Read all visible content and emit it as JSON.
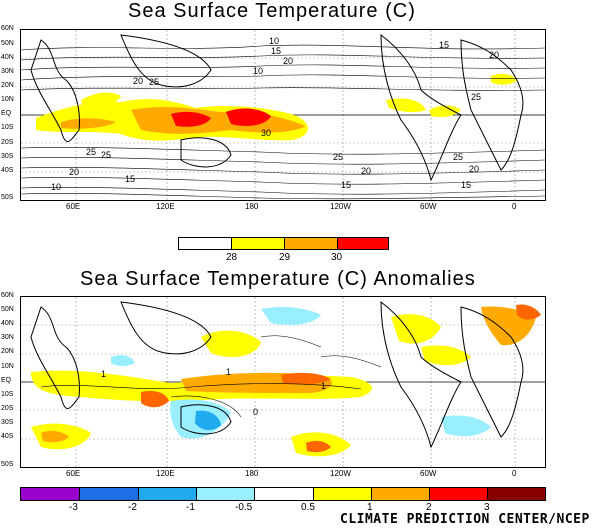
{
  "top_map": {
    "title": "Sea Surface Temperature (C)",
    "lat_labels": [
      "60N",
      "50N",
      "40N",
      "30N",
      "20N",
      "10N",
      "EQ",
      "10S",
      "20S",
      "30S",
      "40S",
      "50S"
    ],
    "lon_labels": [
      "60E",
      "120E",
      "180",
      "120W",
      "60W",
      "0"
    ],
    "contour_labels": [
      "10",
      "15",
      "20",
      "25",
      "25",
      "20",
      "15",
      "10",
      "20",
      "25",
      "30",
      "25",
      "20",
      "15",
      "10",
      "25",
      "20",
      "15",
      "25",
      "20",
      "15"
    ],
    "colorbar": {
      "ticks": [
        "28",
        "29",
        "30"
      ],
      "colors": [
        "#ffffff",
        "#ffff00",
        "#ffaa00",
        "#ff6600",
        "#ff0000"
      ]
    }
  },
  "bottom_map": {
    "title": "Sea Surface Temperature (C) Anomalies",
    "lat_labels": [
      "60N",
      "50N",
      "40N",
      "30N",
      "20N",
      "10N",
      "EQ",
      "10S",
      "20S",
      "30S",
      "40S",
      "50S"
    ],
    "lon_labels": [
      "60E",
      "120E",
      "180",
      "120W",
      "60W",
      "0"
    ],
    "contour_labels": [
      "1",
      "1",
      "1",
      "0"
    ],
    "colorbar": {
      "ticks": [
        "-3",
        "-2",
        "-1",
        "-0.5",
        "0.5",
        "1",
        "2",
        "3"
      ],
      "colors": [
        "#9900cc",
        "#1e6ee6",
        "#22aaee",
        "#99eeff",
        "#ffffff",
        "#ffff00",
        "#ffaa00",
        "#ff6600",
        "#cc0000",
        "#880000"
      ]
    }
  },
  "credit": "CLIMATE PREDICTION CENTER/NCEP",
  "colors": {
    "yellow": "#ffff00",
    "orange": "#ff9900",
    "dark_orange": "#ff6600",
    "red": "#ff0000",
    "light_blue": "#99eeff",
    "blue": "#22aaee"
  }
}
